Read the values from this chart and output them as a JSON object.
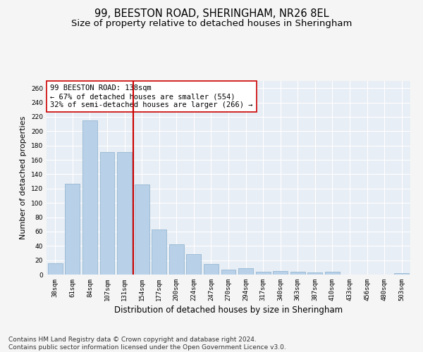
{
  "title_line1": "99, BEESTON ROAD, SHERINGHAM, NR26 8EL",
  "title_line2": "Size of property relative to detached houses in Sheringham",
  "xlabel": "Distribution of detached houses by size in Sheringham",
  "ylabel": "Number of detached properties",
  "bar_color": "#b8d0e8",
  "bar_edge_color": "#8ab0cc",
  "bg_color": "#e8eef5",
  "grid_color": "#ffffff",
  "vline_color": "#cc0000",
  "annotation_text": "99 BEESTON ROAD: 138sqm\n← 67% of detached houses are smaller (554)\n32% of semi-detached houses are larger (266) →",
  "categories": [
    "38sqm",
    "61sqm",
    "84sqm",
    "107sqm",
    "131sqm",
    "154sqm",
    "177sqm",
    "200sqm",
    "224sqm",
    "247sqm",
    "270sqm",
    "294sqm",
    "317sqm",
    "340sqm",
    "363sqm",
    "387sqm",
    "410sqm",
    "433sqm",
    "456sqm",
    "480sqm",
    "503sqm"
  ],
  "values": [
    16,
    127,
    215,
    171,
    171,
    126,
    63,
    42,
    28,
    15,
    7,
    9,
    4,
    5,
    4,
    3,
    4,
    0,
    0,
    0,
    2
  ],
  "ylim": [
    0,
    270
  ],
  "yticks": [
    0,
    20,
    40,
    60,
    80,
    100,
    120,
    140,
    160,
    180,
    200,
    220,
    240,
    260
  ],
  "footnote": "Contains HM Land Registry data © Crown copyright and database right 2024.\nContains public sector information licensed under the Open Government Licence v3.0.",
  "title_fontsize": 10.5,
  "subtitle_fontsize": 9.5,
  "annotation_fontsize": 7.5,
  "footnote_fontsize": 6.5,
  "ylabel_fontsize": 8,
  "xlabel_fontsize": 8.5,
  "tick_fontsize": 6.5
}
